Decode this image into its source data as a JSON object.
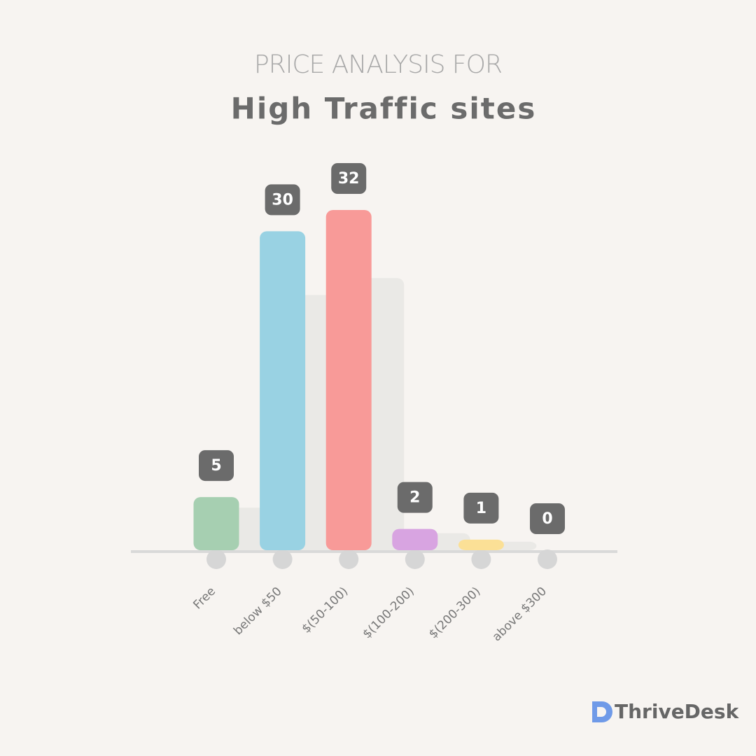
{
  "chart_data": {
    "type": "bar",
    "subtitle": "PRICE ANALYSIS FOR",
    "title": "High Traffic sites",
    "categories": [
      "Free",
      "below $50",
      "$(50-100)",
      "$(100-200)",
      "$(200-300)",
      "above $300"
    ],
    "values": [
      5,
      30,
      32,
      2,
      1,
      0
    ],
    "colors": [
      "#a6cfb1",
      "#99d2e3",
      "#f89a98",
      "#d8a4e1",
      "#fbe096",
      "#cccccc"
    ],
    "brand": "ThriveDesk"
  }
}
